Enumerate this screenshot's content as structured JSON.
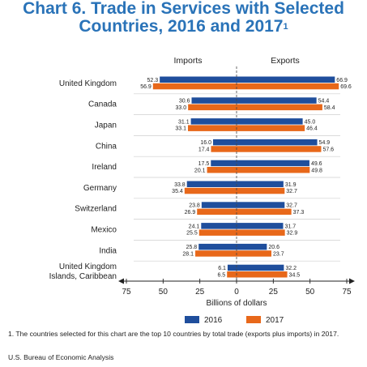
{
  "title": {
    "line1": "Chart 6. Trade in Services with Selected",
    "line2": "Countries, 2016 and 2017",
    "footnote_marker": "1"
  },
  "footnote": "1. The countries selected for this chart are the top 10 countries by total trade (exports plus imports) in 2017.",
  "source": "U.S. Bureau of Economic Analysis",
  "colors": {
    "y2016": "#1f4e9c",
    "y2017": "#e8681a"
  },
  "chart_data": {
    "type": "bar",
    "orientation": "horizontal-butterfly",
    "left_heading": "Imports",
    "right_heading": "Exports",
    "xlabel": "Billions of dollars",
    "xlim": [
      -75,
      75
    ],
    "x_ticks": [
      -75,
      -50,
      -25,
      0,
      25,
      50,
      75
    ],
    "x_tick_labels": [
      "75",
      "50",
      "25",
      "0",
      "25",
      "50",
      "75"
    ],
    "legend_position": "bottom",
    "categories": [
      [
        "United Kingdom"
      ],
      [
        "Canada"
      ],
      [
        "Japan"
      ],
      [
        "China"
      ],
      [
        "Ireland"
      ],
      [
        "Germany"
      ],
      [
        "Switzerland"
      ],
      [
        "Mexico"
      ],
      [
        "India"
      ],
      [
        "United Kingdom",
        "Islands, Caribbean"
      ]
    ],
    "series": [
      {
        "name": "2016",
        "imports": [
          52.3,
          30.6,
          31.1,
          16.0,
          17.5,
          33.8,
          23.8,
          24.1,
          25.8,
          6.1
        ],
        "exports": [
          66.9,
          54.4,
          45.0,
          54.9,
          49.6,
          31.9,
          32.7,
          31.7,
          20.6,
          32.2
        ],
        "imports_labels": [
          "52.3",
          "30.6",
          "31.1",
          "16.0",
          "17.5",
          "33.8",
          "23.8",
          "24.1",
          "25.8",
          "6.1"
        ],
        "exports_labels": [
          "66.9",
          "54.4",
          "45.0",
          "54.9",
          "49.6",
          "31.9",
          "32.7",
          "31.7",
          "20.6",
          "32.2"
        ]
      },
      {
        "name": "2017",
        "imports": [
          56.9,
          33.0,
          33.1,
          17.4,
          20.1,
          35.4,
          26.9,
          25.5,
          28.1,
          6.5
        ],
        "exports": [
          69.6,
          58.4,
          46.4,
          57.6,
          49.8,
          32.7,
          37.3,
          32.9,
          23.7,
          34.5
        ],
        "imports_labels": [
          "56.9",
          "33.0",
          "33.1",
          "17.4",
          "20.1",
          "35.4",
          "26.9",
          "25.5",
          "28.1",
          "6.5"
        ],
        "exports_labels": [
          "69.6",
          "58.4",
          "46.4",
          "57.6",
          "49.8",
          "32.7",
          "37.3",
          "32.9",
          "23.7",
          "34.5"
        ]
      }
    ]
  }
}
